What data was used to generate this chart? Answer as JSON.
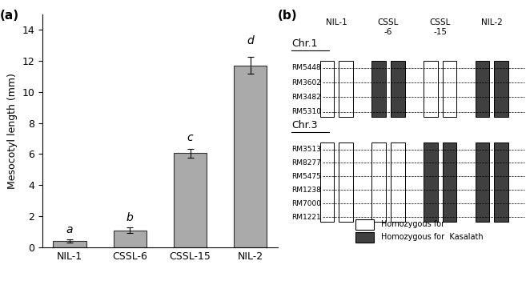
{
  "bar_values": [
    0.4,
    1.1,
    6.05,
    11.7
  ],
  "bar_errors": [
    0.1,
    0.2,
    0.3,
    0.55
  ],
  "bar_labels": [
    "NIL-1",
    "CSSL-6",
    "CSSL-15",
    "NIL-2"
  ],
  "bar_color": "#aaaaaa",
  "bar_edgecolor": "#333333",
  "sig_labels": [
    "a",
    "b",
    "c",
    "d"
  ],
  "sig_offsets": [
    0.25,
    0.25,
    0.35,
    0.65
  ],
  "ylabel": "Mesocotyl length (mm)",
  "ylim": [
    0,
    15
  ],
  "yticks": [
    0,
    2,
    4,
    6,
    8,
    10,
    12,
    14
  ],
  "panel_a_label": "(a)",
  "panel_b_label": "(b)",
  "chr1_label": "Chr.1",
  "chr3_label": "Chr.3",
  "col_headers": [
    "NIL-1",
    "CSSL\n-6",
    "CSSL\n-15",
    "NIL-2"
  ],
  "chr1_markers": [
    "RM5448",
    "RM3602",
    "RM3482",
    "RM5310"
  ],
  "chr3_markers": [
    "RM3513",
    "RM8277",
    "RM5475",
    "RM1238",
    "RM7000",
    "RM1221"
  ],
  "chr1_colors": [
    "#ffffff",
    "#404040",
    "#ffffff",
    "#404040"
  ],
  "chr3_colors": [
    "#ffffff",
    "#ffffff",
    "#404040",
    "#404040"
  ],
  "white_color": "#ffffff",
  "dark_color": "#404040",
  "legend_white_label": "Homozygous for",
  "legend_dark_label": "Homozygous for  Kasalath",
  "background_color": "#ffffff"
}
